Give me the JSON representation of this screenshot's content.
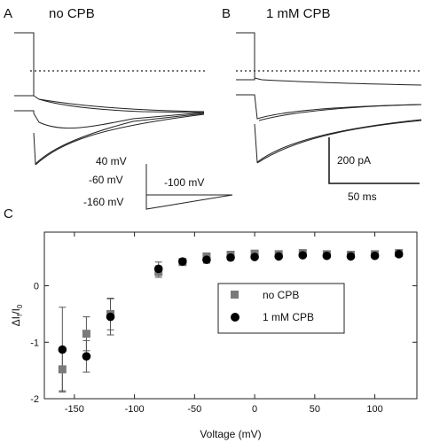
{
  "panels": {
    "a": {
      "letter": "A",
      "title": "no CPB"
    },
    "b": {
      "letter": "B",
      "title": "1 mM CPB"
    },
    "c": {
      "letter": "C"
    }
  },
  "protocol": {
    "labels": [
      "40 mV",
      "-60 mV",
      "-160 mV",
      "-100 mV"
    ]
  },
  "scalebar": {
    "current": "200 pA",
    "time": "50 ms"
  },
  "chart_data": {
    "type": "scatter",
    "xlabel": "Voltage (mV)",
    "ylabel_main": "ΔI",
    "ylabel_sub1": "f",
    "ylabel_mid": "/I",
    "ylabel_sub2": "0",
    "xlim": [
      -175,
      135
    ],
    "ylim": [
      -2,
      0.95
    ],
    "xticks": [
      -150,
      -100,
      -50,
      0,
      50,
      100
    ],
    "yticks": [
      -2,
      -1,
      0
    ],
    "legend_position": "center-right",
    "series": [
      {
        "name": "no CPB",
        "marker": "square",
        "color": "#7a7a7a",
        "points": [
          {
            "x": -160,
            "y": -1.48,
            "err": 0.38
          },
          {
            "x": -140,
            "y": -0.85,
            "err": 0.3
          },
          {
            "x": -120,
            "y": -0.5,
            "err": 0.28
          },
          {
            "x": -80,
            "y": 0.25,
            "err": 0.1
          },
          {
            "x": -60,
            "y": 0.42,
            "err": 0.04
          },
          {
            "x": -40,
            "y": 0.52,
            "err": 0.05
          },
          {
            "x": -20,
            "y": 0.55,
            "err": 0.04
          },
          {
            "x": 0,
            "y": 0.57,
            "err": 0.03
          },
          {
            "x": 20,
            "y": 0.56,
            "err": 0.03
          },
          {
            "x": 40,
            "y": 0.58,
            "err": 0.03
          },
          {
            "x": 60,
            "y": 0.56,
            "err": 0.03
          },
          {
            "x": 80,
            "y": 0.55,
            "err": 0.03
          },
          {
            "x": 100,
            "y": 0.56,
            "err": 0.03
          },
          {
            "x": 120,
            "y": 0.58,
            "err": 0.03
          }
        ]
      },
      {
        "name": "1 mM CPB",
        "marker": "circle",
        "color": "#000000",
        "points": [
          {
            "x": -160,
            "y": -1.13,
            "err": 0.75
          },
          {
            "x": -140,
            "y": -1.25,
            "err": 0.28
          },
          {
            "x": -120,
            "y": -0.55,
            "err": 0.32
          },
          {
            "x": -80,
            "y": 0.3,
            "err": 0.12
          },
          {
            "x": -60,
            "y": 0.43,
            "err": 0.05
          },
          {
            "x": -40,
            "y": 0.46,
            "err": 0.06
          },
          {
            "x": -20,
            "y": 0.5,
            "err": 0.04
          },
          {
            "x": 0,
            "y": 0.51,
            "err": 0.03
          },
          {
            "x": 20,
            "y": 0.52,
            "err": 0.03
          },
          {
            "x": 40,
            "y": 0.54,
            "err": 0.03
          },
          {
            "x": 60,
            "y": 0.53,
            "err": 0.03
          },
          {
            "x": 80,
            "y": 0.52,
            "err": 0.03
          },
          {
            "x": 100,
            "y": 0.53,
            "err": 0.03
          },
          {
            "x": 120,
            "y": 0.56,
            "err": 0.03
          }
        ]
      }
    ]
  }
}
